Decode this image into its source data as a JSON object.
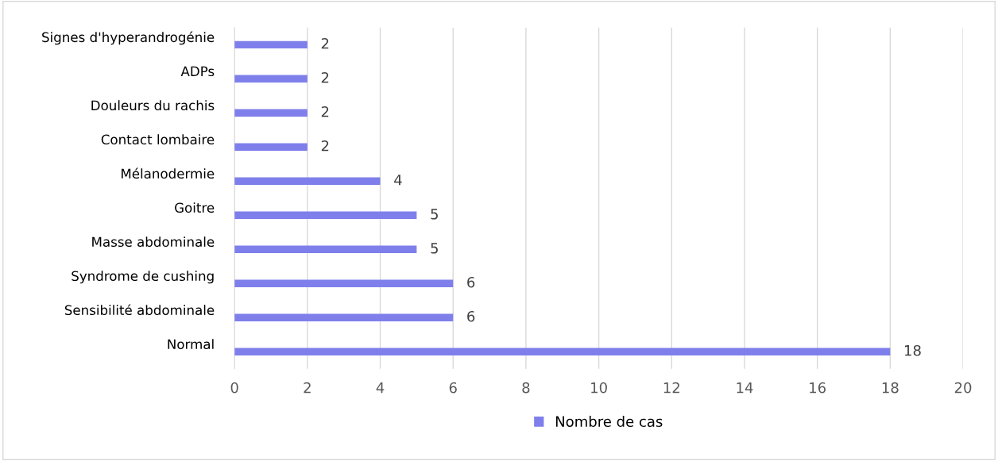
{
  "chart_data": {
    "type": "bar",
    "orientation": "horizontal",
    "categories": [
      "Signes d'hyperandrogénie",
      "ADPs",
      "Douleurs du rachis",
      "Contact lombaire",
      "Mélanodermie",
      "Goitre",
      "Masse abdominale",
      "Syndrome de cushing",
      "Sensibilité abdominale",
      "Normal"
    ],
    "series": [
      {
        "name": "Nombre de cas",
        "color": "#7f7fec",
        "values": [
          2,
          2,
          2,
          2,
          4,
          5,
          5,
          6,
          6,
          18
        ]
      }
    ],
    "xlim": [
      0,
      20
    ],
    "xticks": [
      0,
      2,
      4,
      6,
      8,
      10,
      12,
      14,
      16,
      18,
      20
    ],
    "grid": "x",
    "legend": "bottom",
    "data_labels": true
  }
}
